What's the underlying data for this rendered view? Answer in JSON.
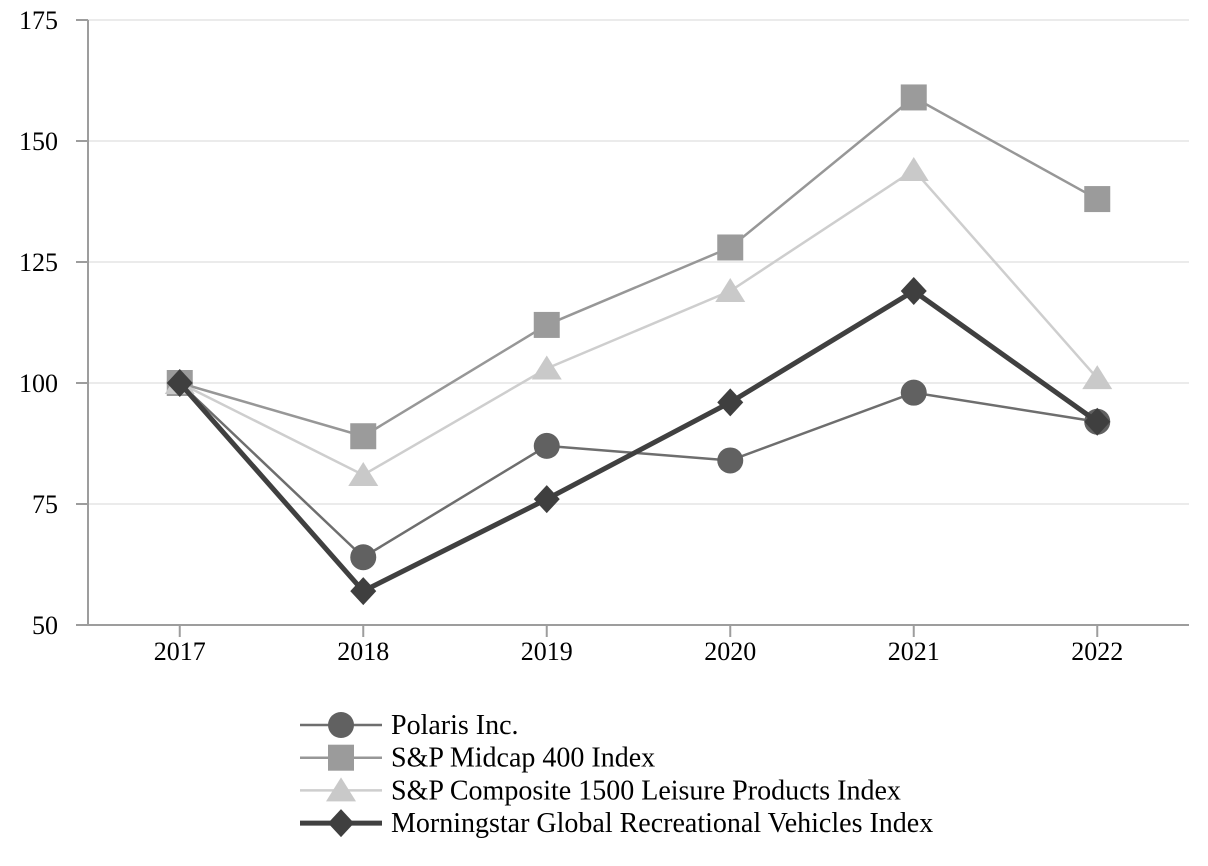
{
  "chart_data": {
    "type": "line",
    "title": "",
    "xlabel": "",
    "ylabel": "",
    "categories": [
      "2017",
      "2018",
      "2019",
      "2020",
      "2021",
      "2022"
    ],
    "series": [
      {
        "name": "Polaris Inc.",
        "marker": "circle",
        "marker_color": "#616161",
        "line_color": "#6e6e6e",
        "line_width": 2.5,
        "values": [
          100,
          64,
          87,
          84,
          98,
          92
        ]
      },
      {
        "name": "S&P Midcap 400 Index",
        "marker": "square",
        "marker_color": "#9b9b9b",
        "line_color": "#979797",
        "line_width": 2.5,
        "values": [
          100,
          89,
          112,
          128,
          159,
          138
        ]
      },
      {
        "name": "S&P Composite 1500 Leisure Products Index",
        "marker": "triangle",
        "marker_color": "#c9c9c9",
        "line_color": "#cecece",
        "line_width": 2.5,
        "values": [
          100,
          81,
          103,
          119,
          144,
          101
        ]
      },
      {
        "name": "Morningstar Global Recreational Vehicles Index",
        "marker": "diamond",
        "marker_color": "#3f3f3f",
        "line_color": "#404040",
        "line_width": 5,
        "values": [
          100,
          57,
          76,
          96,
          119,
          92
        ]
      }
    ],
    "ylim": [
      50,
      175
    ],
    "y_ticks": [
      50,
      75,
      100,
      125,
      150,
      175
    ],
    "y_tick_labels": [
      "50",
      "75",
      "100",
      "125",
      "150",
      "175"
    ],
    "grid": "horizontal",
    "legend_position": "bottom-left",
    "colors": {
      "axis": "#9d9d9d",
      "gridline": "#ebebeb",
      "text": "#000000",
      "background": "#ffffff"
    }
  }
}
